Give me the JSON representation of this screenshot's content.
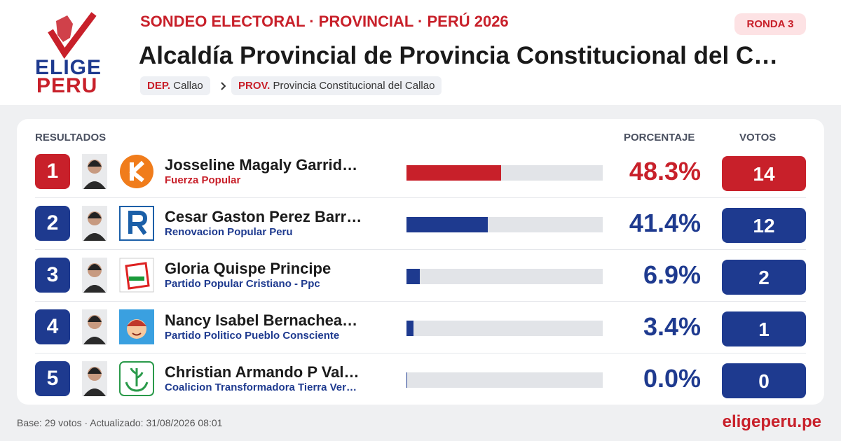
{
  "brand": {
    "line1": "ELIGE",
    "line2": "PERU"
  },
  "header": {
    "kicker": "SONDEO ELECTORAL · PROVINCIAL · PERÚ 2026",
    "title": "Alcaldía Provincial de Provincia Constitucional del C…",
    "badge": "RONDA 3",
    "breadcrumb": {
      "dep_label": "DEP.",
      "dep": "Callao",
      "prov_label": "PROV.",
      "prov": "Provincia Constitucional del Callao"
    }
  },
  "table": {
    "columns": {
      "results": "RESULTADOS",
      "percent": "PORCENTAJE",
      "votes": "VOTOS"
    },
    "rows": [
      {
        "rank": 1,
        "name": "Josseline Magaly Garrid…",
        "party": "Fuerza Popular",
        "percent": 48.3,
        "percent_label": "48.3%",
        "votes": 14,
        "color": "#c8202a"
      },
      {
        "rank": 2,
        "name": "Cesar Gaston Perez Barr…",
        "party": "Renovacion Popular Peru",
        "percent": 41.4,
        "percent_label": "41.4%",
        "votes": 12,
        "color": "#1e3a8f"
      },
      {
        "rank": 3,
        "name": "Gloria Quispe Principe",
        "party": "Partido Popular Cristiano - Ppc",
        "percent": 6.9,
        "percent_label": "6.9%",
        "votes": 2,
        "color": "#1e3a8f"
      },
      {
        "rank": 4,
        "name": "Nancy Isabel Bernachea…",
        "party": "Partido Politico Pueblo Consciente",
        "percent": 3.4,
        "percent_label": "3.4%",
        "votes": 1,
        "color": "#1e3a8f"
      },
      {
        "rank": 5,
        "name": "Christian Armando P Val…",
        "party": "Coalicion Transformadora Tierra Ver…",
        "percent": 0.0,
        "percent_label": "0.0%",
        "votes": 0,
        "color": "#1e3a8f"
      }
    ]
  },
  "footer": {
    "note": "Base: 29 votos · Actualizado: 31/08/2026 08:01",
    "site": "eligeperu.pe"
  }
}
